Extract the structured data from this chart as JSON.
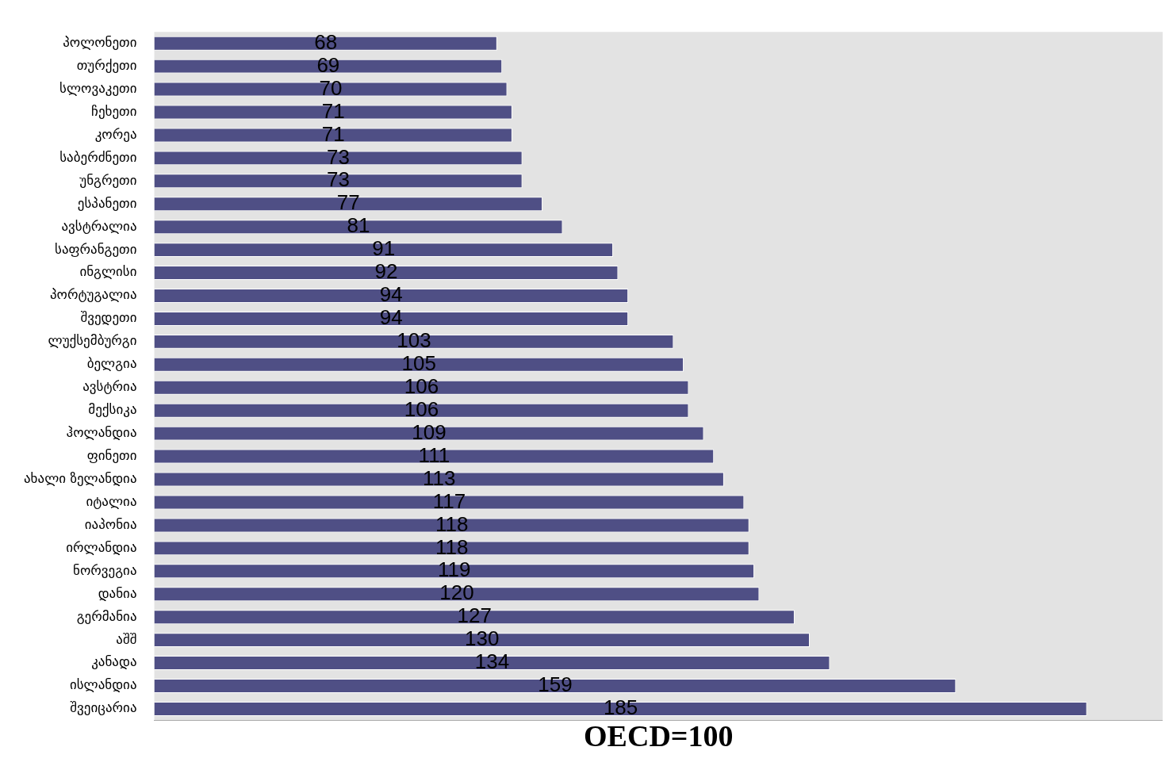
{
  "chart_data": {
    "type": "bar",
    "orientation": "horizontal",
    "xlabel": "OECD=100",
    "categories": [
      "პოლონეთი",
      "თურქეთი",
      "სლოვაკეთი",
      "ჩეხეთი",
      "კორეა",
      "საბერძნეთი",
      "უნგრეთი",
      "ესპანეთი",
      "ავსტრალია",
      "საფრანგეთი",
      "ინგლისი",
      "პორტუგალია",
      "შვედეთი",
      "ლუქსემბურგი",
      "ბელგია",
      "ავსტრია",
      "მექსიკა",
      "ჰოლანდია",
      "ფინეთი",
      "ახალი ზელანდია",
      "იტალია",
      "იაპონია",
      "ირლანდია",
      "ნორვეგია",
      "დანია",
      "გერმანია",
      "აშშ",
      "კანადა",
      "ისლანდია",
      "შვეიცარია"
    ],
    "values": [
      68,
      69,
      70,
      71,
      71,
      73,
      73,
      77,
      81,
      91,
      92,
      94,
      94,
      103,
      105,
      106,
      106,
      109,
      111,
      113,
      117,
      118,
      118,
      119,
      120,
      127,
      130,
      134,
      159,
      185
    ],
    "color": "#4f4f85",
    "data_labels": true,
    "grid": false,
    "legend": false,
    "tick_labels": "y"
  }
}
